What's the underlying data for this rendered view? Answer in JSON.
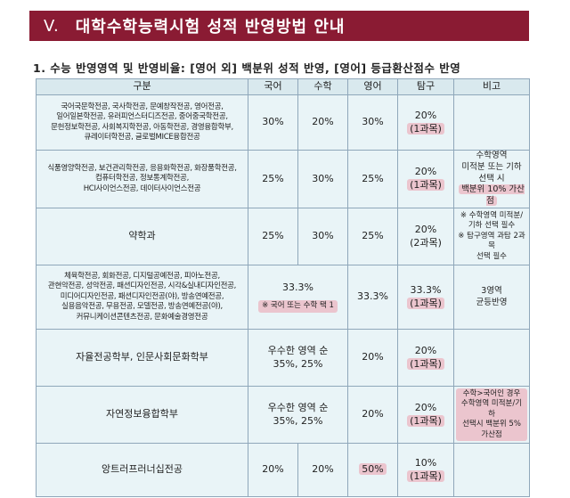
{
  "banner": {
    "number": "V.",
    "title": "대학수학능력시험 성적 반영방법 안내"
  },
  "subtitle": "1. 수능 반영영역 및 반영비율: [영어 외] 백분위 성적 반영, [영어] 등급환산점수 반영",
  "headers": {
    "category": "구분",
    "korean": "국어",
    "math": "수학",
    "english": "영어",
    "inquiry": "탐구",
    "note": "비고"
  },
  "rows": [
    {
      "dept": [
        "국어국문학전공, 국사학전공, 문예창작전공, 영어전공,",
        "일어일본학전공, 유러피언스터디즈전공, 중어중국학전공,",
        "문헌정보학전공, 사회복지학전공, 아동학전공, 경영융합학부,",
        "큐레이터학전공, 글로벌MICE융합전공"
      ],
      "korean": "30%",
      "math": "20%",
      "english": "30%",
      "inquiry": "20%",
      "inquiry_sub": "(1과목)",
      "note": []
    },
    {
      "dept": [
        "식품영양학전공, 보건관리학전공, 응용화학전공, 화장품학전공,",
        "컴퓨터학전공, 정보통계학전공,",
        "HCI사이언스전공, 데이터사이언스전공"
      ],
      "korean": "25%",
      "math": "30%",
      "english": "25%",
      "inquiry": "20%",
      "inquiry_sub": "(1과목)",
      "note": [
        "수학영역",
        "미적분 또는 기하",
        "선택 시"
      ],
      "note_hl": "백분위 10% 가산점"
    },
    {
      "dept": [
        "약학과"
      ],
      "korean": "25%",
      "math": "30%",
      "english": "25%",
      "inquiry": "20%",
      "inquiry_sub": "(2과목)",
      "note": [
        "※ 수학영역 미적분/",
        "기하 선택 필수",
        "※ 탐구영역 과탐 2과목",
        "선택 필수"
      ]
    },
    {
      "dept": [
        "체육학전공, 회화전공, 디지털공예전공, 피아노전공,",
        "관현악전공, 성악전공, 패션디자인전공, 시각&실내디자인전공,",
        "미디어디자인전공, 패션디자인전공(야), 방송연예전공,",
        "실용음악전공, 무용전공, 모델전공, 방송연예전공(야),",
        "커뮤니케이션콘텐츠전공, 문화예술경영전공"
      ],
      "korean_math": "33.3%",
      "korean_math_note": "※ 국어 또는 수학 택 1",
      "english": "33.3%",
      "inquiry": "33.3%",
      "inquiry_sub": "(1과목)",
      "note": [
        "3영역",
        "균등반영"
      ]
    },
    {
      "dept": [
        "자율전공학부, 인문사회문화학부"
      ],
      "korean_math": "우수한 영역 순",
      "korean_math_2": "35%, 25%",
      "english": "20%",
      "inquiry": "20%",
      "inquiry_sub": "(1과목)",
      "note": []
    },
    {
      "dept": [
        "자연정보융합학부"
      ],
      "korean_math": "우수한 영역 순",
      "korean_math_2": "35%, 25%",
      "english": "20%",
      "inquiry": "20%",
      "inquiry_sub": "(1과목)",
      "note_hl_lines": [
        "수학>국어인 경우",
        "수학영역 미적분/기하",
        "선택시 백분위 5%",
        "가산점"
      ]
    },
    {
      "dept": [
        "앙트러프러너십전공"
      ],
      "korean": "20%",
      "math": "20%",
      "english": "50%",
      "inquiry": "10%",
      "inquiry_sub": "(1과목)",
      "note": []
    }
  ]
}
